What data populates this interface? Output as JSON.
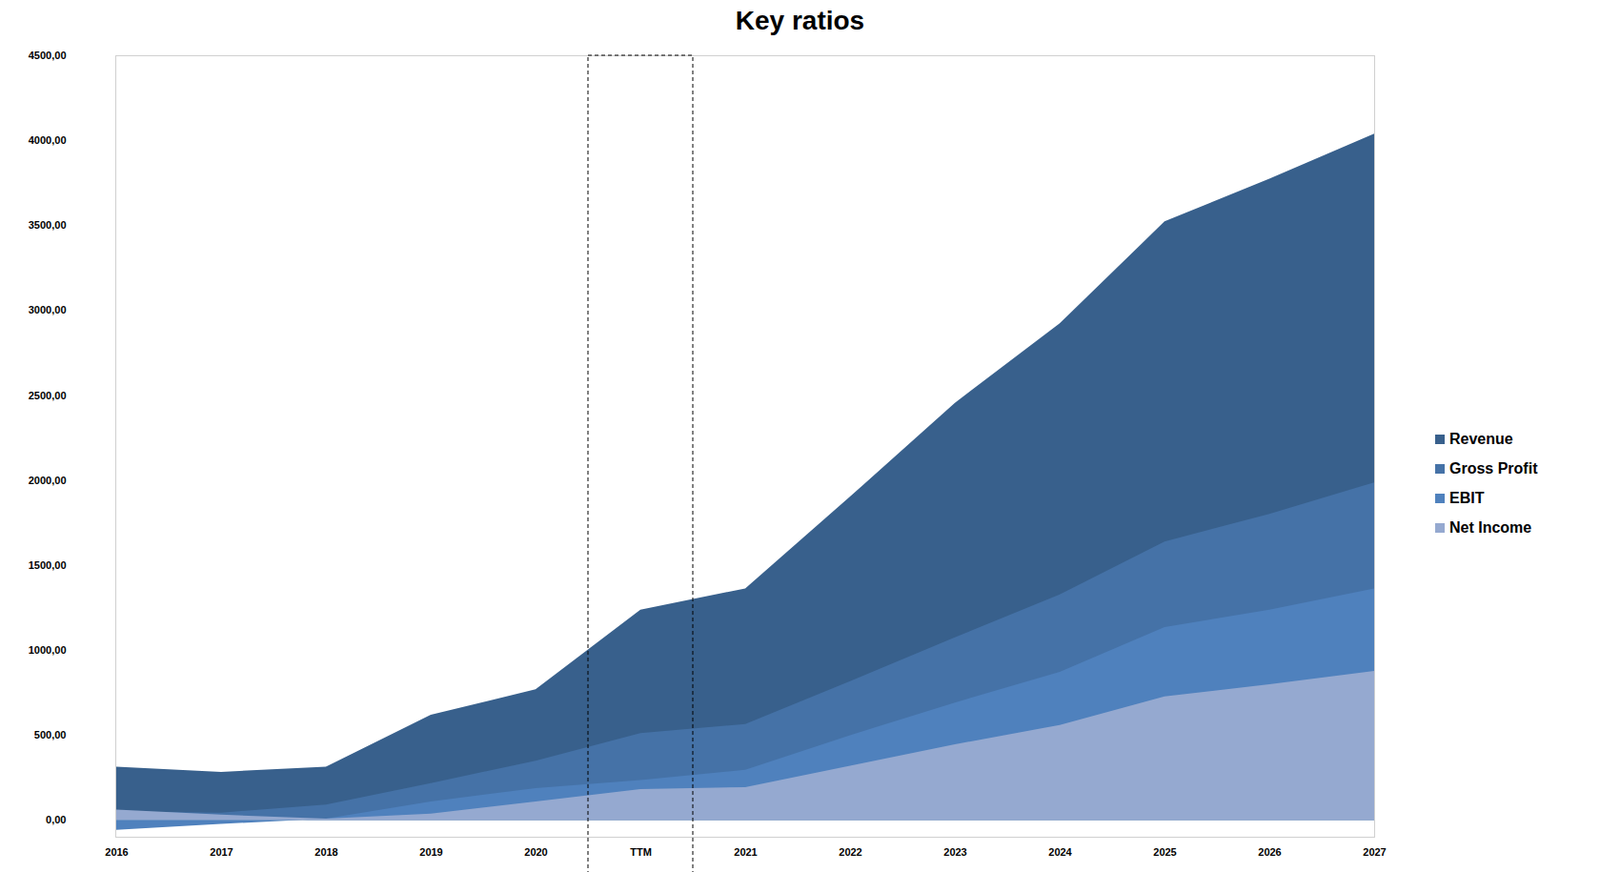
{
  "chart_data": {
    "type": "area",
    "title": "Key ratios",
    "categories": [
      "2016",
      "2017",
      "2018",
      "2019",
      "2020",
      "TTM",
      "2021",
      "2022",
      "2023",
      "2024",
      "2025",
      "2026",
      "2027"
    ],
    "series": [
      {
        "name": "Revenue",
        "color": "#38608c",
        "values": [
          312,
          282,
          312,
          618,
          768,
          1236,
          1362,
          1902,
          2454,
          2922,
          3522,
          3774,
          4038
        ]
      },
      {
        "name": "Gross Profit",
        "color": "#4572a7",
        "values": [
          48,
          42,
          90,
          216,
          348,
          510,
          564,
          816,
          1074,
          1326,
          1638,
          1800,
          1986
        ]
      },
      {
        "name": "EBIT",
        "color": "#4f81bd",
        "values": [
          -60,
          -24,
          6,
          108,
          186,
          234,
          294,
          498,
          690,
          870,
          1134,
          1236,
          1362
        ]
      },
      {
        "name": "Net Income",
        "color": "#95a9d0",
        "values": [
          60,
          30,
          6,
          36,
          108,
          180,
          192,
          318,
          444,
          558,
          726,
          798,
          876
        ]
      }
    ],
    "ylim": [
      -100,
      4500
    ],
    "yticks": [
      {
        "value": 0,
        "label": "0,00"
      },
      {
        "value": 500,
        "label": "500,00"
      },
      {
        "value": 1000,
        "label": "1000,00"
      },
      {
        "value": 1500,
        "label": "1500,00"
      },
      {
        "value": 2000,
        "label": "2000,00"
      },
      {
        "value": 2500,
        "label": "2500,00"
      },
      {
        "value": 3000,
        "label": "3000,00"
      },
      {
        "value": 3500,
        "label": "3500,00"
      },
      {
        "value": 4000,
        "label": "4000,00"
      },
      {
        "value": 4500,
        "label": "4500,00"
      }
    ],
    "legend": "right"
  }
}
